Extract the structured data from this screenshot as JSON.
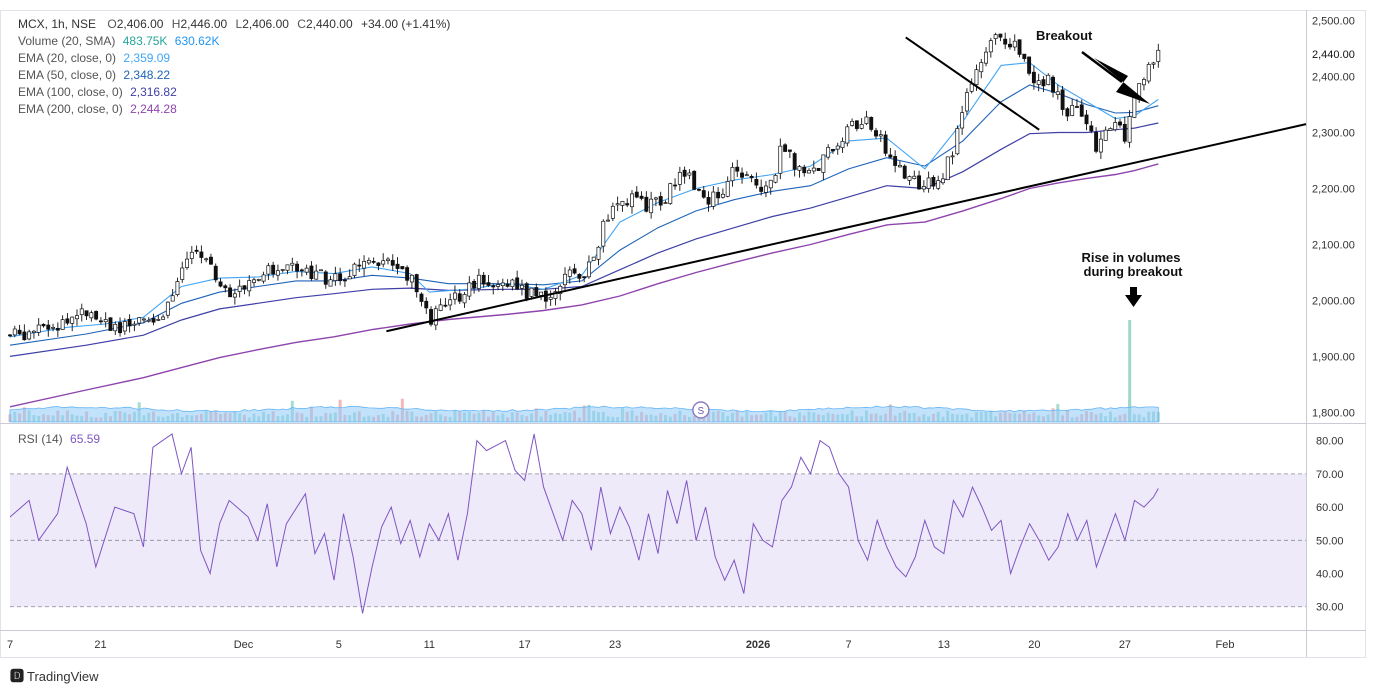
{
  "header": {
    "symbol": "MCX, 1h, NSE",
    "open_label": "O",
    "open": "2,406.00",
    "high_label": "H",
    "high": "2,446.00",
    "low_label": "L",
    "low": "2,406.00",
    "close_label": "C",
    "close": "2,440.00",
    "change": "+34.00 (+1.41%)"
  },
  "indicators": [
    {
      "label": "Volume (20, SMA)",
      "value": "483.75K",
      "value2": "630.62K",
      "color": "#26a69a",
      "color2": "#2196f3"
    },
    {
      "label": "EMA (20, close, 0)",
      "value": "2,359.09",
      "color": "#42a5f5"
    },
    {
      "label": "EMA (50, close, 0)",
      "value": "2,348.22",
      "color": "#1e63b8"
    },
    {
      "label": "EMA (100, close, 0)",
      "value": "2,316.82",
      "color": "#3f3fa8"
    },
    {
      "label": "EMA (200, close, 0)",
      "value": "2,244.28",
      "color": "#8e44ad"
    }
  ],
  "rsi": {
    "label": "RSI (14)",
    "value": "65.59",
    "color": "#7e57c2"
  },
  "annotations": {
    "breakout": "Breakout",
    "volume_line1": "Rise in volumes",
    "volume_line2": "during breakout"
  },
  "event_marker": "S",
  "brand": "TradingView",
  "chart_data": {
    "type": "candlestick",
    "price_axis": {
      "ticks": [
        "2,500.00",
        "2,400.00",
        "2,300.00",
        "2,200.00",
        "2,100.00",
        "2,000.00",
        "1,900.00",
        "1,800.00"
      ],
      "tick_values": [
        2500,
        2400,
        2300,
        2200,
        2100,
        2000,
        1900,
        1800
      ],
      "ylim": [
        1790,
        2510
      ],
      "last_price": "2,440.00",
      "last_value": 2440
    },
    "rsi_axis": {
      "ticks": [
        "80.00",
        "70.00",
        "60.00",
        "50.00",
        "40.00",
        "30.00"
      ],
      "tick_values": [
        80,
        70,
        60,
        50,
        40,
        30
      ],
      "ylim": [
        23,
        85
      ],
      "bands": [
        70,
        50,
        30
      ]
    },
    "time_axis": {
      "labels": [
        "7",
        "21",
        "Dec",
        "5",
        "11",
        "17",
        "23",
        "2026",
        "7",
        "13",
        "20",
        "27",
        "Feb"
      ],
      "positions": [
        0,
        9.5,
        24.5,
        34.5,
        44,
        54,
        63.5,
        78.5,
        88,
        98,
        107.5,
        117,
        127.5
      ],
      "range": [
        0,
        136
      ]
    },
    "price_path": [
      [
        0,
        1938
      ],
      [
        3,
        1945
      ],
      [
        6,
        1962
      ],
      [
        8,
        1985
      ],
      [
        10,
        1960
      ],
      [
        12,
        1950
      ],
      [
        14,
        1962
      ],
      [
        16,
        1970
      ],
      [
        18,
        2060
      ],
      [
        20,
        2088
      ],
      [
        21,
        2070
      ],
      [
        22,
        2025
      ],
      [
        24,
        2015
      ],
      [
        26,
        2048
      ],
      [
        28,
        2055
      ],
      [
        30,
        2060
      ],
      [
        32,
        2050
      ],
      [
        34,
        2035
      ],
      [
        36,
        2050
      ],
      [
        38,
        2080
      ],
      [
        40,
        2060
      ],
      [
        42,
        2045
      ],
      [
        43,
        2000
      ],
      [
        44,
        1965
      ],
      [
        46,
        1990
      ],
      [
        48,
        2025
      ],
      [
        50,
        2040
      ],
      [
        52,
        2030
      ],
      [
        54,
        2015
      ],
      [
        56,
        2005
      ],
      [
        57,
        2020
      ],
      [
        59,
        2045
      ],
      [
        61,
        2060
      ],
      [
        62,
        2120
      ],
      [
        63,
        2165
      ],
      [
        65,
        2180
      ],
      [
        67,
        2168
      ],
      [
        69,
        2185
      ],
      [
        70,
        2225
      ],
      [
        71,
        2230
      ],
      [
        73,
        2180
      ],
      [
        75,
        2195
      ],
      [
        76,
        2232
      ],
      [
        77,
        2225
      ],
      [
        79,
        2205
      ],
      [
        80,
        2210
      ],
      [
        81,
        2275
      ],
      [
        82,
        2250
      ],
      [
        84,
        2225
      ],
      [
        86,
        2265
      ],
      [
        88,
        2305
      ],
      [
        90,
        2318
      ],
      [
        92,
        2270
      ],
      [
        94,
        2225
      ],
      [
        96,
        2200
      ],
      [
        98,
        2230
      ],
      [
        99,
        2265
      ],
      [
        100,
        2340
      ],
      [
        101,
        2390
      ],
      [
        102,
        2420
      ],
      [
        103,
        2460
      ],
      [
        104,
        2470
      ],
      [
        106,
        2450
      ],
      [
        107,
        2405
      ],
      [
        108,
        2380
      ],
      [
        109,
        2395
      ],
      [
        110,
        2360
      ],
      [
        111,
        2340
      ],
      [
        112,
        2350
      ],
      [
        113,
        2320
      ],
      [
        114,
        2260
      ],
      [
        115,
        2300
      ],
      [
        116,
        2325
      ],
      [
        117,
        2295
      ],
      [
        118,
        2370
      ],
      [
        119,
        2395
      ],
      [
        120,
        2425
      ],
      [
        120.5,
        2440
      ]
    ],
    "ema20": [
      [
        0,
        1935
      ],
      [
        6,
        1952
      ],
      [
        10,
        1958
      ],
      [
        14,
        1970
      ],
      [
        18,
        2025
      ],
      [
        22,
        2040
      ],
      [
        26,
        2042
      ],
      [
        30,
        2052
      ],
      [
        34,
        2048
      ],
      [
        38,
        2060
      ],
      [
        42,
        2048
      ],
      [
        44,
        2015
      ],
      [
        48,
        2020
      ],
      [
        52,
        2030
      ],
      [
        56,
        2020
      ],
      [
        60,
        2045
      ],
      [
        64,
        2140
      ],
      [
        68,
        2175
      ],
      [
        72,
        2200
      ],
      [
        76,
        2215
      ],
      [
        80,
        2225
      ],
      [
        84,
        2240
      ],
      [
        88,
        2285
      ],
      [
        92,
        2290
      ],
      [
        96,
        2235
      ],
      [
        100,
        2320
      ],
      [
        104,
        2420
      ],
      [
        107,
        2425
      ],
      [
        110,
        2385
      ],
      [
        113,
        2355
      ],
      [
        116,
        2325
      ],
      [
        118,
        2330
      ],
      [
        120.5,
        2359
      ]
    ],
    "ema50": [
      [
        0,
        1920
      ],
      [
        8,
        1940
      ],
      [
        14,
        1960
      ],
      [
        18,
        1995
      ],
      [
        22,
        2015
      ],
      [
        26,
        2025
      ],
      [
        30,
        2035
      ],
      [
        34,
        2035
      ],
      [
        38,
        2045
      ],
      [
        42,
        2040
      ],
      [
        46,
        2030
      ],
      [
        52,
        2030
      ],
      [
        56,
        2028
      ],
      [
        60,
        2035
      ],
      [
        64,
        2090
      ],
      [
        68,
        2130
      ],
      [
        72,
        2160
      ],
      [
        76,
        2180
      ],
      [
        80,
        2195
      ],
      [
        84,
        2205
      ],
      [
        88,
        2235
      ],
      [
        92,
        2255
      ],
      [
        96,
        2240
      ],
      [
        100,
        2285
      ],
      [
        104,
        2355
      ],
      [
        107,
        2385
      ],
      [
        110,
        2370
      ],
      [
        113,
        2350
      ],
      [
        116,
        2335
      ],
      [
        118,
        2336
      ],
      [
        120.5,
        2348
      ]
    ],
    "ema100": [
      [
        0,
        1900
      ],
      [
        8,
        1920
      ],
      [
        14,
        1938
      ],
      [
        18,
        1965
      ],
      [
        22,
        1985
      ],
      [
        26,
        1995
      ],
      [
        30,
        2005
      ],
      [
        34,
        2012
      ],
      [
        38,
        2020
      ],
      [
        42,
        2022
      ],
      [
        46,
        2018
      ],
      [
        52,
        2020
      ],
      [
        56,
        2020
      ],
      [
        60,
        2025
      ],
      [
        64,
        2055
      ],
      [
        68,
        2085
      ],
      [
        72,
        2110
      ],
      [
        76,
        2130
      ],
      [
        80,
        2150
      ],
      [
        84,
        2165
      ],
      [
        88,
        2185
      ],
      [
        92,
        2205
      ],
      [
        96,
        2200
      ],
      [
        100,
        2230
      ],
      [
        104,
        2270
      ],
      [
        107,
        2298
      ],
      [
        110,
        2300
      ],
      [
        113,
        2300
      ],
      [
        116,
        2305
      ],
      [
        118,
        2308
      ],
      [
        120.5,
        2317
      ]
    ],
    "ema200": [
      [
        0,
        1810
      ],
      [
        8,
        1840
      ],
      [
        14,
        1862
      ],
      [
        18,
        1880
      ],
      [
        22,
        1898
      ],
      [
        26,
        1912
      ],
      [
        30,
        1925
      ],
      [
        34,
        1935
      ],
      [
        38,
        1948
      ],
      [
        42,
        1958
      ],
      [
        46,
        1966
      ],
      [
        52,
        1975
      ],
      [
        56,
        1982
      ],
      [
        60,
        1992
      ],
      [
        64,
        2008
      ],
      [
        68,
        2030
      ],
      [
        72,
        2050
      ],
      [
        76,
        2068
      ],
      [
        80,
        2085
      ],
      [
        84,
        2100
      ],
      [
        88,
        2118
      ],
      [
        92,
        2135
      ],
      [
        96,
        2140
      ],
      [
        100,
        2160
      ],
      [
        104,
        2182
      ],
      [
        107,
        2200
      ],
      [
        110,
        2210
      ],
      [
        113,
        2218
      ],
      [
        116,
        2225
      ],
      [
        118,
        2232
      ],
      [
        120.5,
        2244
      ]
    ],
    "support_line": [
      [
        39.5,
        1945
      ],
      [
        136,
        2315
      ]
    ],
    "resistance_line": [
      [
        94,
        2470
      ],
      [
        108,
        2305
      ]
    ],
    "rsi_path": [
      [
        0,
        57
      ],
      [
        2,
        62
      ],
      [
        3,
        50
      ],
      [
        5,
        58
      ],
      [
        6,
        72
      ],
      [
        8,
        55
      ],
      [
        9,
        42
      ],
      [
        11,
        60
      ],
      [
        13,
        58
      ],
      [
        14,
        48
      ],
      [
        15,
        78
      ],
      [
        17,
        82
      ],
      [
        18,
        70
      ],
      [
        19,
        78
      ],
      [
        20,
        47
      ],
      [
        21,
        40
      ],
      [
        22,
        55
      ],
      [
        23,
        62
      ],
      [
        25,
        57
      ],
      [
        26,
        50
      ],
      [
        27,
        61
      ],
      [
        28,
        42
      ],
      [
        29,
        55
      ],
      [
        31,
        64
      ],
      [
        32,
        46
      ],
      [
        33,
        52
      ],
      [
        34,
        38
      ],
      [
        35,
        58
      ],
      [
        36,
        45
      ],
      [
        37,
        28
      ],
      [
        38,
        42
      ],
      [
        39,
        54
      ],
      [
        40,
        60
      ],
      [
        41,
        49
      ],
      [
        42,
        56
      ],
      [
        43,
        45
      ],
      [
        44,
        55
      ],
      [
        45,
        50
      ],
      [
        46,
        58
      ],
      [
        47,
        44
      ],
      [
        48,
        58
      ],
      [
        49,
        80
      ],
      [
        50,
        77
      ],
      [
        52,
        80
      ],
      [
        53,
        71
      ],
      [
        54,
        68
      ],
      [
        55,
        82
      ],
      [
        56,
        66
      ],
      [
        57,
        58
      ],
      [
        58,
        50
      ],
      [
        59,
        62
      ],
      [
        60,
        58
      ],
      [
        61,
        47
      ],
      [
        62,
        66
      ],
      [
        63,
        52
      ],
      [
        64,
        60
      ],
      [
        65,
        54
      ],
      [
        66,
        44
      ],
      [
        67,
        58
      ],
      [
        68,
        46
      ],
      [
        69,
        65
      ],
      [
        70,
        55
      ],
      [
        71,
        68
      ],
      [
        72,
        50
      ],
      [
        73,
        60
      ],
      [
        74,
        45
      ],
      [
        75,
        38
      ],
      [
        76,
        44
      ],
      [
        77,
        34
      ],
      [
        78,
        55
      ],
      [
        79,
        50
      ],
      [
        80,
        48
      ],
      [
        81,
        62
      ],
      [
        82,
        66
      ],
      [
        83,
        75
      ],
      [
        84,
        70
      ],
      [
        85,
        80
      ],
      [
        86,
        78
      ],
      [
        87,
        70
      ],
      [
        88,
        66
      ],
      [
        89,
        50
      ],
      [
        90,
        44
      ],
      [
        91,
        56
      ],
      [
        92,
        48
      ],
      [
        93,
        42
      ],
      [
        94,
        39
      ],
      [
        95,
        45
      ],
      [
        96,
        56
      ],
      [
        97,
        48
      ],
      [
        98,
        46
      ],
      [
        99,
        62
      ],
      [
        100,
        57
      ],
      [
        101,
        66
      ],
      [
        102,
        60
      ],
      [
        103,
        53
      ],
      [
        104,
        56
      ],
      [
        105,
        40
      ],
      [
        106,
        48
      ],
      [
        107,
        55
      ],
      [
        108,
        50
      ],
      [
        109,
        44
      ],
      [
        110,
        48
      ],
      [
        111,
        58
      ],
      [
        112,
        50
      ],
      [
        113,
        56
      ],
      [
        114,
        42
      ],
      [
        115,
        50
      ],
      [
        116,
        58
      ],
      [
        117,
        50
      ],
      [
        118,
        62
      ],
      [
        119,
        60
      ],
      [
        120,
        63
      ],
      [
        120.5,
        65.6
      ]
    ],
    "volume_spike_x": 117.5,
    "event_marker_x": 72.5
  }
}
